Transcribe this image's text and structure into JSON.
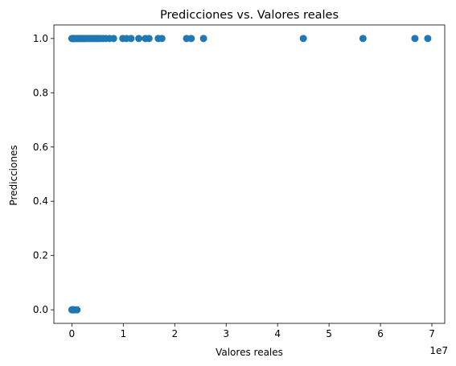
{
  "chart_data": {
    "type": "scatter",
    "title": "Predicciones vs. Valores reales",
    "xlabel": "Valores reales",
    "ylabel": "Predicciones",
    "x_offset_label": "1e7",
    "xlim": [
      -3500000,
      72500000
    ],
    "ylim": [
      -0.05,
      1.05
    ],
    "xticks": [
      0,
      10000000,
      20000000,
      30000000,
      40000000,
      50000000,
      60000000,
      70000000
    ],
    "xtick_labels": [
      "0",
      "1",
      "2",
      "3",
      "4",
      "5",
      "6",
      "7"
    ],
    "yticks": [
      0.0,
      0.2,
      0.4,
      0.6,
      0.8,
      1.0
    ],
    "ytick_labels": [
      "0.0",
      "0.2",
      "0.4",
      "0.6",
      "0.8",
      "1.0"
    ],
    "grid": false,
    "marker_color": "#1f77b4",
    "points": [
      [
        0,
        1
      ],
      [
        100000,
        1
      ],
      [
        200000,
        1
      ],
      [
        300000,
        1
      ],
      [
        400000,
        1
      ],
      [
        500000,
        1
      ],
      [
        700000,
        1
      ],
      [
        900000,
        1
      ],
      [
        1100000,
        1
      ],
      [
        1300000,
        1
      ],
      [
        1500000,
        1
      ],
      [
        1700000,
        1
      ],
      [
        1900000,
        1
      ],
      [
        2100000,
        1
      ],
      [
        2300000,
        1
      ],
      [
        2500000,
        1
      ],
      [
        2800000,
        1
      ],
      [
        3100000,
        1
      ],
      [
        3400000,
        1
      ],
      [
        3700000,
        1
      ],
      [
        4000000,
        1
      ],
      [
        4300000,
        1
      ],
      [
        4600000,
        1
      ],
      [
        4900000,
        1
      ],
      [
        5200000,
        1
      ],
      [
        5600000,
        1
      ],
      [
        6100000,
        1
      ],
      [
        6600000,
        1
      ],
      [
        7300000,
        1
      ],
      [
        8100000,
        1
      ],
      [
        9900000,
        1
      ],
      [
        10600000,
        1
      ],
      [
        11500000,
        1
      ],
      [
        13000000,
        1
      ],
      [
        14300000,
        1
      ],
      [
        15000000,
        1
      ],
      [
        16800000,
        1
      ],
      [
        17500000,
        1
      ],
      [
        22300000,
        1
      ],
      [
        23200000,
        1
      ],
      [
        25600000,
        1
      ],
      [
        45000000,
        1
      ],
      [
        56600000,
        1
      ],
      [
        66700000,
        1
      ],
      [
        69200000,
        1
      ],
      [
        0,
        0
      ],
      [
        100000,
        0
      ],
      [
        200000,
        0
      ],
      [
        300000,
        0
      ],
      [
        500000,
        0
      ],
      [
        1000000,
        0
      ]
    ]
  }
}
